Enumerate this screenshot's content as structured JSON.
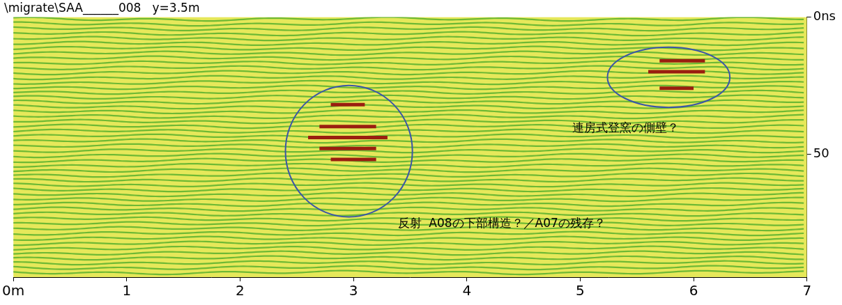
{
  "chart_data": {
    "type": "scatter",
    "title": "\\migrate\\SAA______008   y=3.5m",
    "xlim": [
      0,
      7
    ],
    "xticks": [
      {
        "value": 0,
        "label": "0m"
      },
      1,
      2,
      3,
      4,
      5,
      6,
      7
    ],
    "ylim": [
      0,
      95
    ],
    "yticks": [
      {
        "value": 0,
        "label": "0ns"
      },
      50
    ],
    "grid": false,
    "color": "#9a1e10",
    "reflections": [
      {
        "x": [
          2.8,
          3.1
        ],
        "y": 32
      },
      {
        "x": [
          2.7,
          3.2
        ],
        "y": 40
      },
      {
        "x": [
          2.6,
          3.3
        ],
        "y": 44
      },
      {
        "x": [
          2.7,
          3.2
        ],
        "y": 48
      },
      {
        "x": [
          2.8,
          3.2
        ],
        "y": 52
      },
      {
        "x": [
          5.7,
          6.1
        ],
        "y": 16
      },
      {
        "x": [
          5.6,
          6.1
        ],
        "y": 20
      },
      {
        "x": [
          5.7,
          6.0
        ],
        "y": 26
      }
    ],
    "ellipses": [
      {
        "x": 2.96,
        "y": 49,
        "rx": 0.56,
        "ry": 24
      },
      {
        "x": 5.78,
        "y": 22,
        "rx": 0.54,
        "ry": 11
      }
    ],
    "annotations": [
      {
        "text": "連房式登窯の側壁？",
        "x": 4.93,
        "y": 40.7
      },
      {
        "text": "反射  A08の下部構造？／A07の残存？",
        "x": 3.39,
        "y": 75.6
      }
    ]
  }
}
